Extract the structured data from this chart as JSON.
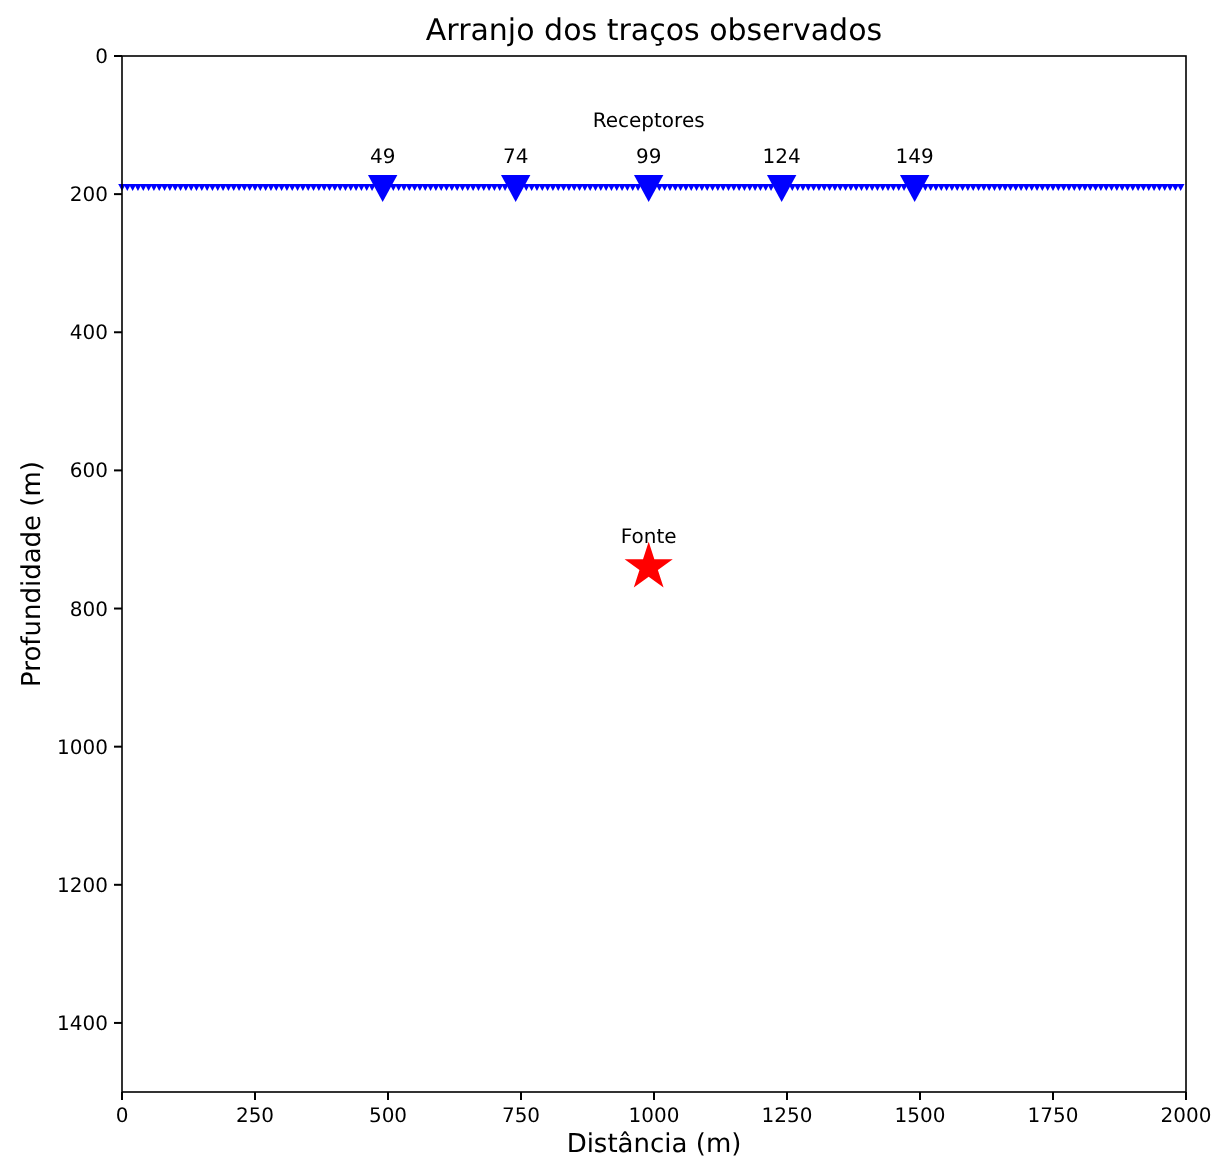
{
  "chart_data": {
    "type": "scatter",
    "title": "Arranjo dos traços observados",
    "xlabel": "Distância (m)",
    "ylabel": "Profundidade (m)",
    "xlim": [
      0,
      2000
    ],
    "xticks": [
      0,
      250,
      500,
      750,
      1000,
      1250,
      1500,
      1750,
      2000
    ],
    "ylim": [
      1500,
      0
    ],
    "yticks": [
      0,
      200,
      400,
      600,
      800,
      1000,
      1200,
      1400
    ],
    "grid": false,
    "series": [
      {
        "color": "#0000ff",
        "marker": "triangle",
        "x": [
          0,
          10,
          20,
          30,
          40,
          50,
          60,
          70,
          80,
          90,
          100,
          110,
          120,
          130,
          140,
          150,
          160,
          170,
          180,
          190,
          200,
          210,
          220,
          230,
          240,
          250,
          260,
          270,
          280,
          290,
          300,
          310,
          320,
          330,
          340,
          350,
          360,
          370,
          380,
          390,
          400,
          410,
          420,
          430,
          440,
          450,
          460,
          470,
          510,
          520,
          530,
          540,
          550,
          560,
          570,
          580,
          590,
          600,
          610,
          620,
          630,
          640,
          650,
          660,
          670,
          680,
          690,
          700,
          710,
          720,
          760,
          770,
          780,
          790,
          800,
          810,
          820,
          830,
          840,
          850,
          860,
          870,
          880,
          890,
          900,
          910,
          920,
          930,
          940,
          950,
          960,
          970,
          1010,
          1020,
          1030,
          1040,
          1050,
          1060,
          1070,
          1080,
          1090,
          1100,
          1110,
          1120,
          1130,
          1140,
          1150,
          1160,
          1170,
          1180,
          1190,
          1200,
          1210,
          1220,
          1260,
          1270,
          1280,
          1290,
          1300,
          1310,
          1320,
          1330,
          1340,
          1350,
          1360,
          1370,
          1380,
          1390,
          1400,
          1410,
          1420,
          1430,
          1440,
          1450,
          1460,
          1470,
          1510,
          1520,
          1530,
          1540,
          1550,
          1560,
          1570,
          1580,
          1590,
          1600,
          1610,
          1620,
          1630,
          1640,
          1650,
          1660,
          1670,
          1680,
          1690,
          1700,
          1710,
          1720,
          1730,
          1740,
          1750,
          1760,
          1770,
          1780,
          1790,
          1800,
          1810,
          1820,
          1830,
          1840,
          1850,
          1860,
          1870,
          1880,
          1890,
          1900,
          1910,
          1920,
          1930,
          1940,
          1950,
          1960,
          1970,
          1980,
          1990
        ],
        "values": [
          190,
          190,
          190,
          190,
          190,
          190,
          190,
          190,
          190,
          190,
          190,
          190,
          190,
          190,
          190,
          190,
          190,
          190,
          190,
          190,
          190,
          190,
          190,
          190,
          190,
          190,
          190,
          190,
          190,
          190,
          190,
          190,
          190,
          190,
          190,
          190,
          190,
          190,
          190,
          190,
          190,
          190,
          190,
          190,
          190,
          190,
          190,
          190,
          190,
          190,
          190,
          190,
          190,
          190,
          190,
          190,
          190,
          190,
          190,
          190,
          190,
          190,
          190,
          190,
          190,
          190,
          190,
          190,
          190,
          190,
          190,
          190,
          190,
          190,
          190,
          190,
          190,
          190,
          190,
          190,
          190,
          190,
          190,
          190,
          190,
          190,
          190,
          190,
          190,
          190,
          190,
          190,
          190,
          190,
          190,
          190,
          190,
          190,
          190,
          190,
          190,
          190,
          190,
          190,
          190,
          190,
          190,
          190,
          190,
          190,
          190,
          190,
          190,
          190,
          190,
          190,
          190,
          190,
          190,
          190,
          190,
          190,
          190,
          190,
          190,
          190,
          190,
          190,
          190,
          190,
          190,
          190,
          190,
          190,
          190,
          190,
          190,
          190,
          190,
          190,
          190,
          190,
          190,
          190,
          190,
          190,
          190,
          190,
          190,
          190,
          190,
          190,
          190,
          190,
          190,
          190,
          190,
          190,
          190,
          190,
          190,
          190,
          190,
          190,
          190,
          190,
          190,
          190,
          190,
          190,
          190,
          190,
          190,
          190,
          190,
          190,
          190,
          190,
          190,
          190,
          190,
          190,
          190,
          190,
          190
        ]
      },
      {
        "color": "#0000ff",
        "marker": "triangle",
        "x": [
          490,
          740,
          990,
          1240,
          1490
        ],
        "values": [
          190,
          190,
          190,
          190,
          190
        ]
      },
      {
        "color": "#ff0000",
        "marker": "star",
        "x": [
          990
        ],
        "values": [
          740
        ]
      }
    ],
    "annotations": [
      {
        "text": "Receptores",
        "x": 990,
        "y": 190
      },
      {
        "text": "49",
        "x": 490,
        "y": 190
      },
      {
        "text": "74",
        "x": 740,
        "y": 190
      },
      {
        "text": "99",
        "x": 990,
        "y": 190
      },
      {
        "text": "124",
        "x": 1240,
        "y": 190
      },
      {
        "text": "149",
        "x": 1490,
        "y": 190
      },
      {
        "text": "Fonte",
        "x": 990,
        "y": 740
      }
    ]
  }
}
